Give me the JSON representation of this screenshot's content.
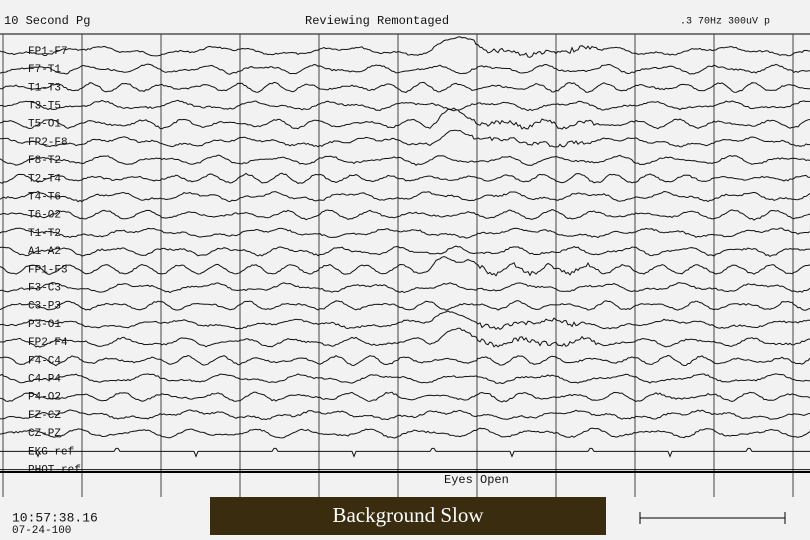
{
  "header": {
    "page": "10 Second Pg",
    "mode": "Reviewing Remontaged",
    "settings": ".3 70Hz  300uV p"
  },
  "channels": [
    "FP1-F7",
    "F7-T1",
    "T1-T3",
    "T3-T5",
    "T5-O1",
    "FP2-F8",
    "F8-T2",
    "T2-T4",
    "T4-T6",
    "T6-O2",
    "T1-T2",
    "A1-A2",
    "FP1-F3",
    "F3-C3",
    "C3-P3",
    "P3-O1",
    "FP2-F4",
    "F4-C4",
    "C4-P4",
    "P4-O2",
    "FZ-CZ",
    "CZ-PZ",
    "EKG-ref",
    "PHOT-ref"
  ],
  "annotation": "Eyes Open",
  "footer": {
    "time": "10:57:38.16",
    "date": "07-24-100",
    "caption": "Background Slow"
  }
}
